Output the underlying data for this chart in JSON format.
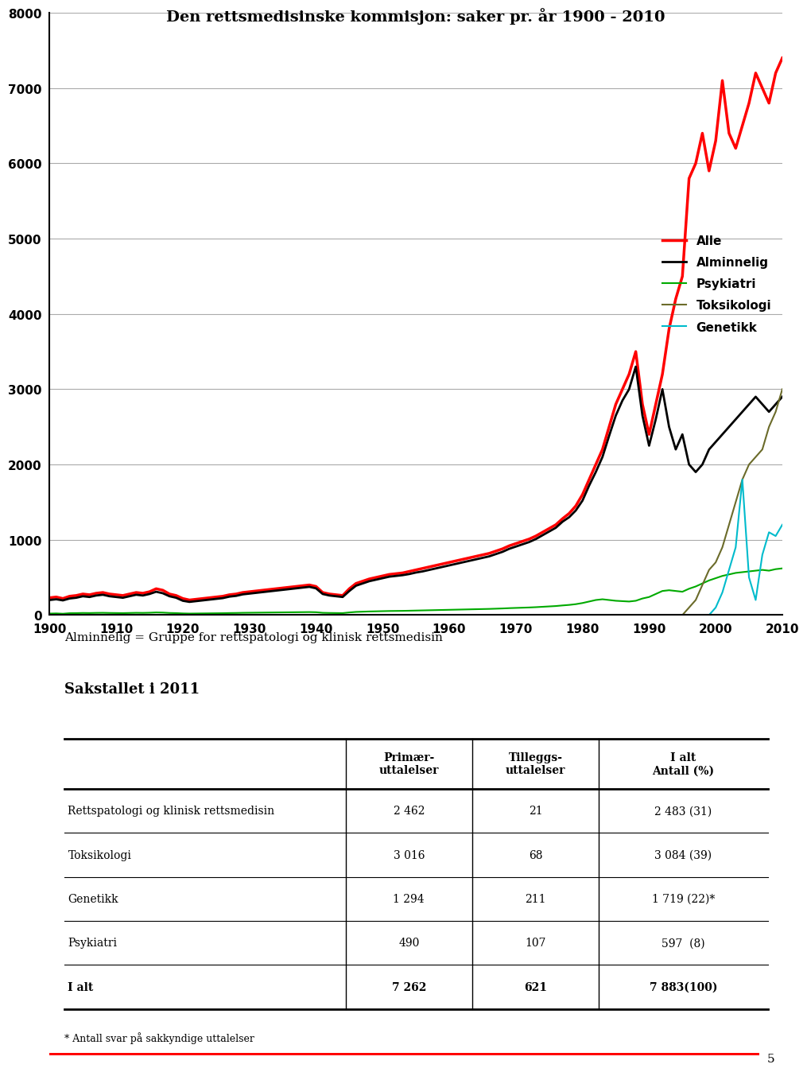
{
  "title": "Den rettsmedisinske kommisjon: saker pr. år 1900 - 2010",
  "subtitle": "Alminnelig = Gruppe for rettspatologi og klinisk rettsmedisin",
  "sakstallet_title": "Sakstallet i 2011",
  "years": [
    1900,
    1901,
    1902,
    1903,
    1904,
    1905,
    1906,
    1907,
    1908,
    1909,
    1910,
    1911,
    1912,
    1913,
    1914,
    1915,
    1916,
    1917,
    1918,
    1919,
    1920,
    1921,
    1922,
    1923,
    1924,
    1925,
    1926,
    1927,
    1928,
    1929,
    1930,
    1931,
    1932,
    1933,
    1934,
    1935,
    1936,
    1937,
    1938,
    1939,
    1940,
    1941,
    1942,
    1943,
    1944,
    1945,
    1946,
    1947,
    1948,
    1949,
    1950,
    1951,
    1952,
    1953,
    1954,
    1955,
    1956,
    1957,
    1958,
    1959,
    1960,
    1961,
    1962,
    1963,
    1964,
    1965,
    1966,
    1967,
    1968,
    1969,
    1970,
    1971,
    1972,
    1973,
    1974,
    1975,
    1976,
    1977,
    1978,
    1979,
    1980,
    1981,
    1982,
    1983,
    1984,
    1985,
    1986,
    1987,
    1988,
    1989,
    1990,
    1991,
    1992,
    1993,
    1994,
    1995,
    1996,
    1997,
    1998,
    1999,
    2000,
    2001,
    2002,
    2003,
    2004,
    2005,
    2006,
    2007,
    2008,
    2009,
    2010
  ],
  "alle": [
    230,
    240,
    220,
    250,
    260,
    280,
    270,
    290,
    300,
    280,
    270,
    260,
    280,
    300,
    290,
    310,
    350,
    330,
    280,
    260,
    220,
    200,
    210,
    220,
    230,
    240,
    250,
    270,
    280,
    300,
    310,
    320,
    330,
    340,
    350,
    360,
    370,
    380,
    390,
    400,
    380,
    300,
    280,
    270,
    260,
    350,
    420,
    450,
    480,
    500,
    520,
    540,
    550,
    560,
    580,
    600,
    620,
    640,
    660,
    680,
    700,
    720,
    740,
    760,
    780,
    800,
    820,
    850,
    880,
    920,
    950,
    980,
    1010,
    1050,
    1100,
    1150,
    1200,
    1280,
    1350,
    1450,
    1600,
    1800,
    2000,
    2200,
    2500,
    2800,
    3000,
    3200,
    3500,
    2800,
    2400,
    2800,
    3200,
    3800,
    4200,
    4500,
    5800,
    6000,
    6400,
    5900,
    6300,
    7100,
    6400,
    6200,
    6500,
    6800,
    7200,
    7000,
    6800,
    7200,
    7400
  ],
  "alminnelig": [
    200,
    210,
    195,
    220,
    230,
    250,
    240,
    260,
    270,
    250,
    240,
    230,
    250,
    270,
    260,
    280,
    310,
    290,
    250,
    230,
    190,
    175,
    185,
    195,
    205,
    215,
    225,
    245,
    255,
    275,
    285,
    295,
    305,
    315,
    325,
    335,
    345,
    355,
    365,
    375,
    355,
    280,
    260,
    250,
    240,
    320,
    390,
    420,
    450,
    470,
    490,
    510,
    520,
    530,
    545,
    565,
    580,
    600,
    620,
    640,
    660,
    680,
    700,
    720,
    740,
    760,
    780,
    810,
    840,
    880,
    910,
    940,
    970,
    1010,
    1060,
    1110,
    1160,
    1240,
    1300,
    1390,
    1520,
    1720,
    1900,
    2100,
    2380,
    2650,
    2850,
    3000,
    3300,
    2650,
    2250,
    2600,
    3000,
    2500,
    2200,
    2400,
    2000,
    1900,
    2000,
    2200,
    2300,
    2400,
    2500,
    2600,
    2700,
    2800,
    2900,
    2800,
    2700,
    2800,
    2900
  ],
  "psykiatri": [
    20,
    22,
    18,
    25,
    26,
    28,
    27,
    29,
    30,
    28,
    27,
    26,
    28,
    30,
    29,
    31,
    35,
    33,
    28,
    26,
    22,
    20,
    21,
    22,
    23,
    24,
    25,
    27,
    28,
    30,
    31,
    32,
    33,
    34,
    35,
    36,
    37,
    38,
    39,
    40,
    38,
    30,
    28,
    27,
    26,
    35,
    42,
    45,
    48,
    50,
    52,
    54,
    55,
    56,
    58,
    60,
    62,
    64,
    66,
    68,
    70,
    72,
    74,
    76,
    78,
    80,
    82,
    85,
    88,
    92,
    95,
    98,
    101,
    105,
    110,
    115,
    120,
    128,
    135,
    145,
    160,
    180,
    200,
    210,
    200,
    190,
    185,
    180,
    190,
    220,
    240,
    280,
    320,
    330,
    320,
    310,
    350,
    380,
    420,
    460,
    490,
    520,
    540,
    560,
    570,
    580,
    590,
    600,
    590,
    610,
    620
  ],
  "toksikologi": [
    0,
    0,
    0,
    0,
    0,
    0,
    0,
    0,
    0,
    0,
    0,
    0,
    0,
    0,
    0,
    0,
    0,
    0,
    0,
    0,
    0,
    0,
    0,
    0,
    0,
    0,
    0,
    0,
    0,
    0,
    0,
    0,
    0,
    0,
    0,
    0,
    0,
    0,
    0,
    0,
    0,
    0,
    0,
    0,
    0,
    0,
    0,
    0,
    0,
    0,
    0,
    0,
    0,
    0,
    0,
    0,
    0,
    0,
    0,
    0,
    0,
    0,
    0,
    0,
    0,
    0,
    0,
    0,
    0,
    0,
    0,
    0,
    0,
    0,
    0,
    0,
    0,
    0,
    0,
    0,
    0,
    0,
    0,
    0,
    0,
    0,
    0,
    0,
    0,
    0,
    0,
    0,
    0,
    0,
    0,
    0,
    100,
    200,
    400,
    600,
    700,
    900,
    1200,
    1500,
    1800,
    2000,
    2100,
    2200,
    2500,
    2700,
    3000
  ],
  "genetikk": [
    0,
    0,
    0,
    0,
    0,
    0,
    0,
    0,
    0,
    0,
    0,
    0,
    0,
    0,
    0,
    0,
    0,
    0,
    0,
    0,
    0,
    0,
    0,
    0,
    0,
    0,
    0,
    0,
    0,
    0,
    0,
    0,
    0,
    0,
    0,
    0,
    0,
    0,
    0,
    0,
    0,
    0,
    0,
    0,
    0,
    0,
    0,
    0,
    0,
    0,
    0,
    0,
    0,
    0,
    0,
    0,
    0,
    0,
    0,
    0,
    0,
    0,
    0,
    0,
    0,
    0,
    0,
    0,
    0,
    0,
    0,
    0,
    0,
    0,
    0,
    0,
    0,
    0,
    0,
    0,
    0,
    0,
    0,
    0,
    0,
    0,
    0,
    0,
    0,
    0,
    0,
    0,
    0,
    0,
    0,
    0,
    0,
    0,
    0,
    0,
    100,
    300,
    600,
    900,
    1800,
    500,
    200,
    800,
    1100,
    1050,
    1200
  ],
  "line_colors": {
    "alle": "#FF0000",
    "alminnelig": "#000000",
    "psykiatri": "#00AA00",
    "toksikologi": "#6B6B2A",
    "genetikk": "#00BBCC"
  },
  "line_widths": {
    "alle": 2.5,
    "alminnelig": 2.0,
    "psykiatri": 1.5,
    "toksikologi": 1.5,
    "genetikk": 1.5
  },
  "legend_labels": [
    "Alle",
    "Alminnelig",
    "Psykiatri",
    "Toksikologi",
    "Genetikk"
  ],
  "ylim": [
    0,
    8000
  ],
  "yticks": [
    0,
    1000,
    2000,
    3000,
    4000,
    5000,
    6000,
    7000,
    8000
  ],
  "table_headers": [
    "",
    "Primær-\nuttalelser",
    "Tilleggs-\nuttalelser",
    "I alt\nAntall (%)"
  ],
  "table_rows": [
    [
      "Rettspatologi og klinisk rettsmedisin",
      "2 462",
      "21",
      "2 483 (31)"
    ],
    [
      "Toksikologi",
      "3 016",
      "68",
      "3 084 (39)"
    ],
    [
      "Genetikk",
      "1 294",
      "211",
      "1 719 (22)*"
    ],
    [
      "Psykiatri",
      "490",
      "107",
      "597  (8)"
    ],
    [
      "I alt",
      "7 262",
      "621",
      "7 883(100)"
    ]
  ],
  "footnote": "* Antall svar på sakkyndige uttalelser",
  "background_color": "#FFFFFF",
  "page_number": "5"
}
